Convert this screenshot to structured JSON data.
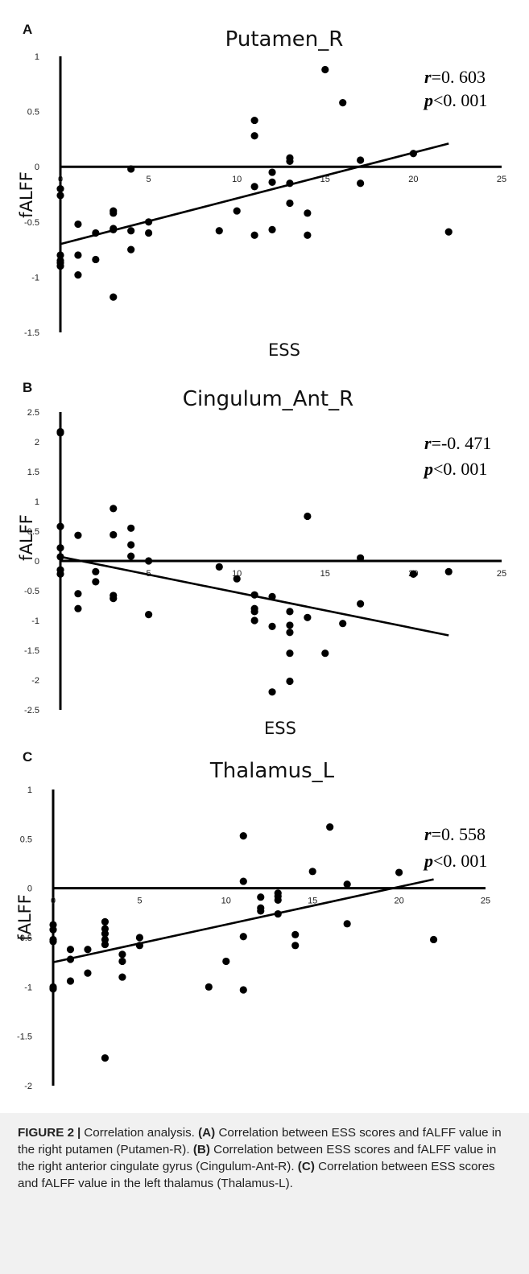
{
  "chart_data": [
    {
      "panel_letter": "A",
      "type": "scatter",
      "title": "Putamen_R",
      "xlabel": "ESS",
      "ylabel": "fALFF",
      "xlim": [
        0,
        25
      ],
      "ylim": [
        -1.5,
        1
      ],
      "x_ticks": [
        0,
        5,
        10,
        15,
        20,
        25
      ],
      "y_ticks": [
        1,
        0.5,
        0,
        -0.5,
        -1,
        -1.5
      ],
      "x_tick_labels": [
        "0",
        "5",
        "10",
        "15",
        "20",
        "25"
      ],
      "y_tick_labels": [
        "1",
        "0.5",
        "0",
        "-0.5",
        "-1",
        "-1.5"
      ],
      "r_text": "=0. 603",
      "p_text": "<0. 001",
      "r_symbol": "r",
      "p_symbol": "p",
      "fit_line": {
        "x0": 0,
        "y0": -0.7,
        "x1": 22,
        "y1": 0.21
      },
      "points": [
        [
          0,
          -0.2
        ],
        [
          0,
          -0.26
        ],
        [
          0,
          -0.8
        ],
        [
          0,
          -0.85
        ],
        [
          0,
          -0.87
        ],
        [
          0,
          -0.9
        ],
        [
          1,
          -0.52
        ],
        [
          1,
          -0.8
        ],
        [
          1,
          -0.98
        ],
        [
          2,
          -0.6
        ],
        [
          2,
          -0.84
        ],
        [
          3,
          -0.4
        ],
        [
          3,
          -0.42
        ],
        [
          3,
          -0.56
        ],
        [
          3,
          -0.57
        ],
        [
          3,
          -1.18
        ],
        [
          4,
          -0.02
        ],
        [
          4,
          -0.58
        ],
        [
          4,
          -0.75
        ],
        [
          5,
          -0.5
        ],
        [
          5,
          -0.6
        ],
        [
          9,
          -0.58
        ],
        [
          10,
          -0.4
        ],
        [
          11,
          0.42
        ],
        [
          11,
          0.28
        ],
        [
          11,
          -0.18
        ],
        [
          11,
          -0.62
        ],
        [
          12,
          -0.05
        ],
        [
          12,
          -0.14
        ],
        [
          12,
          -0.57
        ],
        [
          13,
          0.08
        ],
        [
          13,
          0.05
        ],
        [
          13,
          -0.15
        ],
        [
          13,
          -0.33
        ],
        [
          14,
          -0.42
        ],
        [
          14,
          -0.62
        ],
        [
          15,
          0.88
        ],
        [
          16,
          0.58
        ],
        [
          17,
          0.06
        ],
        [
          17,
          -0.15
        ],
        [
          20,
          0.12
        ],
        [
          22,
          -0.59
        ]
      ]
    },
    {
      "panel_letter": "B",
      "type": "scatter",
      "title": "Cingulum_Ant_R",
      "xlabel": "ESS",
      "ylabel": "fALFF",
      "xlim": [
        0,
        25
      ],
      "ylim": [
        -2.5,
        2.5
      ],
      "x_ticks": [
        0,
        5,
        10,
        15,
        20,
        25
      ],
      "y_ticks": [
        2.5,
        2,
        1.5,
        1,
        0.5,
        0,
        -0.5,
        -1,
        -1.5,
        -2,
        -2.5
      ],
      "x_tick_labels": [
        "",
        "5",
        "10",
        "15",
        "20",
        "25"
      ],
      "y_tick_labels": [
        "2.5",
        "2",
        "1.5",
        "1",
        "0.5",
        "0",
        "-0.5",
        "-1",
        "-1.5",
        "-2",
        "-2.5"
      ],
      "r_text": "=-0. 471",
      "p_text": "<0. 001",
      "r_symbol": "r",
      "p_symbol": "p",
      "fit_line": {
        "x0": 0,
        "y0": 0.07,
        "x1": 22,
        "y1": -1.25
      },
      "points": [
        [
          0,
          2.17
        ],
        [
          0,
          2.15
        ],
        [
          0,
          0.58
        ],
        [
          0,
          0.22
        ],
        [
          0,
          0.07
        ],
        [
          0,
          -0.15
        ],
        [
          0,
          -0.22
        ],
        [
          1,
          0.43
        ],
        [
          1,
          -0.55
        ],
        [
          1,
          -0.8
        ],
        [
          2,
          -0.18
        ],
        [
          2,
          -0.35
        ],
        [
          3,
          0.88
        ],
        [
          3,
          0.44
        ],
        [
          3,
          -0.58
        ],
        [
          3,
          -0.63
        ],
        [
          4,
          0.55
        ],
        [
          4,
          0.27
        ],
        [
          4,
          0.08
        ],
        [
          5,
          0.0
        ],
        [
          5,
          -0.9
        ],
        [
          9,
          -0.1
        ],
        [
          10,
          -0.3
        ],
        [
          11,
          -0.57
        ],
        [
          11,
          -0.8
        ],
        [
          11,
          -0.85
        ],
        [
          11,
          -1.0
        ],
        [
          12,
          -0.6
        ],
        [
          12,
          -1.1
        ],
        [
          12,
          -2.2
        ],
        [
          13,
          -0.85
        ],
        [
          13,
          -1.08
        ],
        [
          13,
          -1.2
        ],
        [
          13,
          -1.55
        ],
        [
          13,
          -2.02
        ],
        [
          14,
          0.75
        ],
        [
          14,
          -0.95
        ],
        [
          15,
          -1.55
        ],
        [
          16,
          -1.05
        ],
        [
          17,
          0.05
        ],
        [
          17,
          -0.72
        ],
        [
          20,
          -0.22
        ],
        [
          20,
          -0.22
        ],
        [
          22,
          -0.18
        ]
      ]
    },
    {
      "panel_letter": "C",
      "type": "scatter",
      "title": "Thalamus_L",
      "xlabel": "ESS",
      "ylabel": "fALFF",
      "xlim": [
        0,
        25
      ],
      "ylim": [
        -2,
        1
      ],
      "x_ticks": [
        0,
        5,
        10,
        15,
        20,
        25
      ],
      "y_ticks": [
        1,
        0.5,
        0,
        -0.5,
        -1,
        -1.5,
        -2
      ],
      "x_tick_labels": [
        "0",
        "5",
        "10",
        "15",
        "20",
        "25"
      ],
      "y_tick_labels": [
        "1",
        "0.5",
        "0",
        "-0.5",
        "-1",
        "-1.5",
        "-2"
      ],
      "r_text": "=0. 558",
      "p_text": "<0. 001",
      "r_symbol": "r",
      "p_symbol": "p",
      "fit_line": {
        "x0": 0,
        "y0": -0.75,
        "x1": 22,
        "y1": 0.09
      },
      "points": [
        [
          0,
          -0.37
        ],
        [
          0,
          -0.42
        ],
        [
          0,
          -0.52
        ],
        [
          0,
          -0.54
        ],
        [
          0,
          -1.0
        ],
        [
          0,
          -1.02
        ],
        [
          1,
          -0.62
        ],
        [
          1,
          -0.72
        ],
        [
          1,
          -0.94
        ],
        [
          2,
          -0.62
        ],
        [
          2,
          -0.86
        ],
        [
          3,
          -0.34
        ],
        [
          3,
          -0.41
        ],
        [
          3,
          -0.46
        ],
        [
          3,
          -0.52
        ],
        [
          3,
          -0.57
        ],
        [
          3,
          -1.72
        ],
        [
          4,
          -0.67
        ],
        [
          4,
          -0.74
        ],
        [
          4,
          -0.9
        ],
        [
          5,
          -0.5
        ],
        [
          5,
          -0.58
        ],
        [
          9,
          -1.0
        ],
        [
          10,
          -0.74
        ],
        [
          11,
          0.53
        ],
        [
          11,
          0.07
        ],
        [
          11,
          -0.49
        ],
        [
          11,
          -1.03
        ],
        [
          12,
          -0.09
        ],
        [
          12,
          -0.2
        ],
        [
          12,
          -0.23
        ],
        [
          13,
          -0.05
        ],
        [
          13,
          -0.08
        ],
        [
          13,
          -0.12
        ],
        [
          13,
          -0.26
        ],
        [
          14,
          -0.47
        ],
        [
          14,
          -0.58
        ],
        [
          15,
          0.17
        ],
        [
          16,
          0.62
        ],
        [
          17,
          0.04
        ],
        [
          17,
          -0.36
        ],
        [
          20,
          0.16
        ],
        [
          22,
          -0.52
        ]
      ]
    }
  ],
  "caption": {
    "label": "FIGURE 2",
    "separator": "|",
    "intro": "Correlation analysis.",
    "part_a_label": "(A)",
    "part_a_text": "Correlation between ESS scores and fALFF value in the right putamen (Putamen-R).",
    "part_b_label": "(B)",
    "part_b_text": "Correlation between ESS scores and fALFF value in the right anterior cingulate gyrus (Cingulum-Ant-R).",
    "part_c_label": "(C)",
    "part_c_text": "Correlation between ESS scores and fALFF value in the left thalamus (Thalamus-L)."
  }
}
